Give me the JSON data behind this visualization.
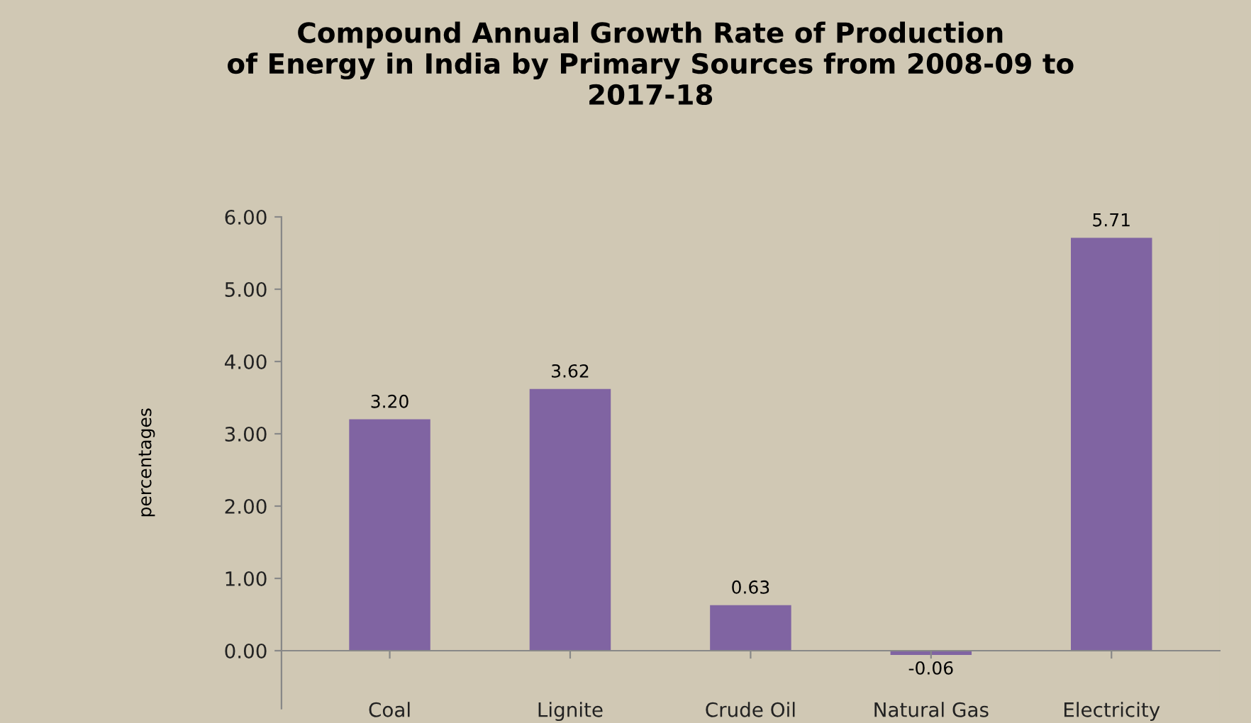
{
  "chart_data": {
    "type": "bar",
    "title": "Compound Annual Growth Rate of Production\nof Energy in India by Primary Sources from 2008-09 to\n2017-18",
    "ylabel": "percentages",
    "categories": [
      "Coal",
      "Lignite",
      "Crude Oil",
      "Natural Gas",
      "Electricity"
    ],
    "values": [
      3.2,
      3.62,
      0.63,
      -0.06,
      5.71
    ],
    "color": "#8064a2",
    "ylim": [
      -0.8,
      6
    ],
    "yticks": [
      {
        "value": 0,
        "label": "0.00"
      },
      {
        "value": 1,
        "label": "1.00"
      },
      {
        "value": 2,
        "label": "2.00"
      },
      {
        "value": 3,
        "label": "3.00"
      },
      {
        "value": 4,
        "label": "4.00"
      },
      {
        "value": 5,
        "label": "5.00"
      },
      {
        "value": 6,
        "label": "6.00"
      }
    ],
    "value_labels": [
      "3.20",
      "3.62",
      "0.63",
      "-0.06",
      "5.71"
    ],
    "grid": false,
    "legend": false
  }
}
